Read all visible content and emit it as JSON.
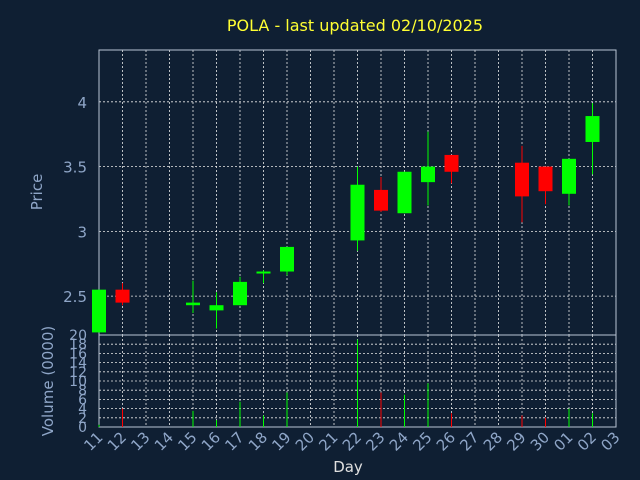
{
  "chart_data": {
    "type": "candlestick",
    "title": "POLA - last updated 02/10/2025",
    "xlabel": "Day",
    "ylabel": "Price",
    "volume_label": "Volume (0000)",
    "x_ticks": [
      "11",
      "12",
      "13",
      "14",
      "15",
      "16",
      "17",
      "18",
      "19",
      "20",
      "21",
      "22",
      "23",
      "24",
      "25",
      "26",
      "27",
      "28",
      "29",
      "30",
      "01",
      "02",
      "03"
    ],
    "price_ylim": [
      2.2,
      4.4
    ],
    "price_ticks": [
      "2.5",
      "3",
      "3.5",
      "4"
    ],
    "volume_ylim": [
      0,
      20
    ],
    "volume_ticks": [
      "0",
      "2",
      "4",
      "6",
      "8",
      "10",
      "12",
      "14",
      "16",
      "18",
      "20"
    ],
    "grid": true,
    "up_color": "#00ff00",
    "down_color": "#ff0000",
    "candles": [
      {
        "day": "11",
        "open": 2.22,
        "high": 2.55,
        "low": 2.22,
        "close": 2.55,
        "volume": 0.5
      },
      {
        "day": "12",
        "open": 2.55,
        "high": 2.6,
        "low": 2.43,
        "close": 2.45,
        "volume": 4.0
      },
      {
        "day": "15",
        "open": 2.43,
        "high": 2.62,
        "low": 2.37,
        "close": 2.45,
        "volume": 3.5
      },
      {
        "day": "16",
        "open": 2.39,
        "high": 2.53,
        "low": 2.25,
        "close": 2.43,
        "volume": 1.5
      },
      {
        "day": "17",
        "open": 2.43,
        "high": 2.65,
        "low": 2.43,
        "close": 2.61,
        "volume": 5.5
      },
      {
        "day": "18",
        "open": 2.68,
        "high": 2.7,
        "low": 2.6,
        "close": 2.69,
        "volume": 2.5
      },
      {
        "day": "19",
        "open": 2.69,
        "high": 2.88,
        "low": 2.66,
        "close": 2.88,
        "volume": 7.5
      },
      {
        "day": "22",
        "open": 2.93,
        "high": 3.5,
        "low": 2.85,
        "close": 3.36,
        "volume": 19.0
      },
      {
        "day": "23",
        "open": 3.32,
        "high": 3.42,
        "low": 3.15,
        "close": 3.16,
        "volume": 7.5
      },
      {
        "day": "24",
        "open": 3.14,
        "high": 3.46,
        "low": 3.14,
        "close": 3.46,
        "volume": 7.0
      },
      {
        "day": "25",
        "open": 3.38,
        "high": 3.77,
        "low": 3.2,
        "close": 3.5,
        "volume": 9.5
      },
      {
        "day": "26",
        "open": 3.59,
        "high": 3.59,
        "low": 3.37,
        "close": 3.46,
        "volume": 3.0
      },
      {
        "day": "29",
        "open": 3.53,
        "high": 3.66,
        "low": 3.07,
        "close": 3.27,
        "volume": 2.5
      },
      {
        "day": "30",
        "open": 3.5,
        "high": 3.5,
        "low": 3.21,
        "close": 3.31,
        "volume": 2.0
      },
      {
        "day": "01",
        "open": 3.29,
        "high": 3.56,
        "low": 3.2,
        "close": 3.56,
        "volume": 4.0
      },
      {
        "day": "02",
        "open": 3.69,
        "high": 3.99,
        "low": 3.44,
        "close": 3.89,
        "volume": 3.0
      }
    ]
  }
}
